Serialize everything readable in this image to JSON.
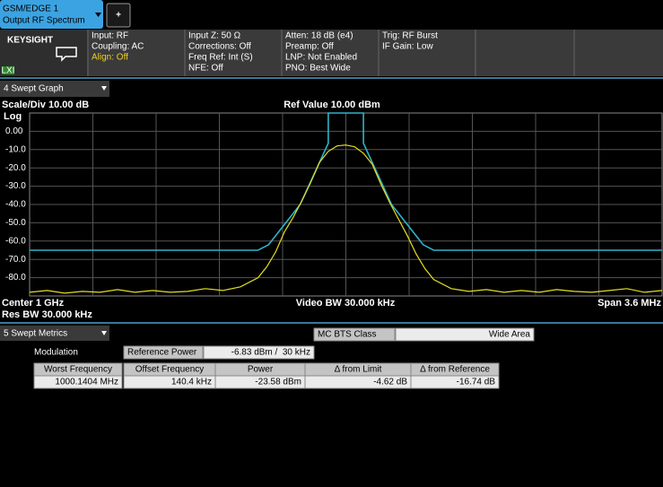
{
  "tab": {
    "line1": "GSM/EDGE 1",
    "line2": "Output RF Spectrum"
  },
  "add_button": "+",
  "logo": "KEYSIGHT",
  "badge": "LXI",
  "status": [
    [
      "Input: RF",
      "Coupling: AC",
      "Align: Off"
    ],
    [
      "Input Z: 50 Ω",
      "Corrections: Off",
      "Freq Ref: Int (S)",
      "NFE: Off"
    ],
    [
      "Atten: 18 dB (e4)",
      "Preamp: Off",
      "LNP: Not Enabled",
      "PNO: Best Wide"
    ],
    [
      "Trig: RF Burst",
      "IF Gain: Low"
    ]
  ],
  "graph_window": "4 Swept Graph",
  "chart_data": {
    "type": "line",
    "scale_label": "Scale/Div 10.00 dB",
    "ref_label": "Ref Value 10.00 dBm",
    "y_mode_label": "Log",
    "ylim": [
      -90,
      10
    ],
    "yticks": [
      {
        "value": 0,
        "label": "0.00"
      },
      {
        "value": -10,
        "label": "-10.0"
      },
      {
        "value": -20,
        "label": "-20.0"
      },
      {
        "value": -30,
        "label": "-30.0"
      },
      {
        "value": -40,
        "label": "-40.0"
      },
      {
        "value": -50,
        "label": "-50.0"
      },
      {
        "value": -60,
        "label": "-60.0"
      },
      {
        "value": -70,
        "label": "-70.0"
      },
      {
        "value": -80,
        "label": "-80.0"
      }
    ],
    "xlim": [
      998.2,
      1001.8
    ],
    "grid": true,
    "series": [
      {
        "color": "#2fb3c9",
        "x": [
          998.2,
          999.5,
          999.56,
          999.74,
          999.9,
          999.9,
          1000.1,
          1000.1,
          1000.26,
          1000.44,
          1000.5,
          1001.8
        ],
        "values": [
          -65,
          -65,
          -62,
          -40,
          -6.5,
          10,
          10,
          -6.5,
          -40,
          -62,
          -65,
          -65
        ]
      },
      {
        "color": "#e6df1e",
        "x": [
          998.2,
          998.3,
          998.4,
          998.5,
          998.6,
          998.7,
          998.8,
          998.9,
          999.0,
          999.1,
          999.2,
          999.3,
          999.4,
          999.5,
          999.55,
          999.6,
          999.65,
          999.7,
          999.75,
          999.8,
          999.85,
          999.9,
          999.95,
          1000.0,
          1000.05,
          1000.1,
          1000.15,
          1000.2,
          1000.25,
          1000.3,
          1000.35,
          1000.4,
          1000.45,
          1000.5,
          1000.6,
          1000.7,
          1000.8,
          1000.9,
          1001.0,
          1001.1,
          1001.2,
          1001.3,
          1001.4,
          1001.5,
          1001.6,
          1001.7,
          1001.8
        ],
        "values": [
          -88,
          -87,
          -88.5,
          -87.5,
          -88,
          -86.5,
          -88,
          -87,
          -88,
          -87.5,
          -86,
          -87,
          -85,
          -80,
          -74,
          -66,
          -55,
          -47,
          -38,
          -28,
          -17,
          -11,
          -8,
          -7.5,
          -8.5,
          -12,
          -18,
          -29,
          -39,
          -48,
          -57,
          -67,
          -75,
          -81,
          -86,
          -87.5,
          -86.5,
          -88,
          -87,
          -88,
          -86.5,
          -87.5,
          -88,
          -87,
          -86,
          -88,
          -87
        ]
      }
    ],
    "footer": {
      "center": "Center 1 GHz",
      "video_bw": "Video BW 30.000 kHz",
      "span": "Span 3.6 MHz",
      "res_bw": "Res BW 30.000 kHz"
    }
  },
  "metrics_window": "5 Swept Metrics",
  "class_label": "MC BTS Class",
  "class_value": "Wide Area",
  "modulation": "Modulation",
  "ref_power_label": "Reference Power",
  "ref_power_value": "-6.83 dBm /  30 kHz",
  "table": {
    "header": [
      "Worst Frequency",
      "Offset Frequency",
      "Power",
      "Δ from Limit",
      "Δ from Reference"
    ],
    "rows": [
      [
        "1000.1404 MHz",
        "140.4 kHz",
        "-23.58 dBm",
        "-4.62 dB",
        "-16.74 dB"
      ]
    ]
  }
}
